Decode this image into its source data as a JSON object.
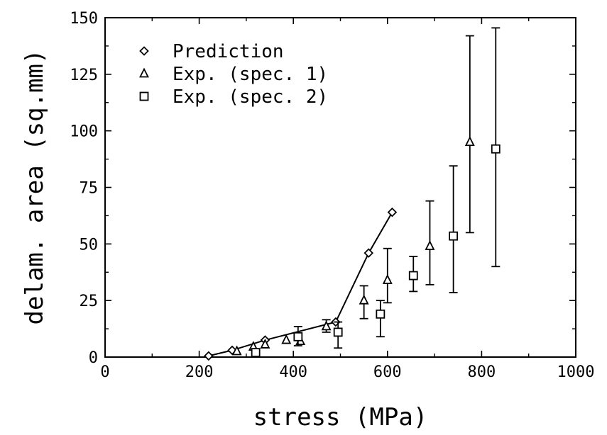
{
  "chart_data": {
    "type": "scatter",
    "xlabel": "stress (MPa)",
    "ylabel": "delam. area (sq.mm)",
    "xlim": [
      0,
      1000
    ],
    "ylim": [
      0,
      150
    ],
    "xticks": [
      0,
      200,
      400,
      600,
      800,
      1000
    ],
    "yticks": [
      0,
      25,
      50,
      75,
      100,
      125,
      150
    ],
    "grid": false,
    "legend_position": "top-left",
    "series": [
      {
        "name": "Prediction",
        "marker": "diamond",
        "line": true,
        "points": [
          {
            "x": 220,
            "y": 0.5
          },
          {
            "x": 270,
            "y": 3
          },
          {
            "x": 340,
            "y": 7.5
          },
          {
            "x": 490,
            "y": 15.5
          },
          {
            "x": 560,
            "y": 46
          },
          {
            "x": 610,
            "y": 64
          }
        ]
      },
      {
        "name": "Exp. (spec. 1)",
        "marker": "triangle",
        "line": false,
        "points": [
          {
            "x": 280,
            "y": 2.5
          },
          {
            "x": 315,
            "y": 4.5
          },
          {
            "x": 340,
            "y": 5.5
          },
          {
            "x": 385,
            "y": 7.5
          },
          {
            "x": 415,
            "y": 7
          },
          {
            "x": 470,
            "y": 13.5,
            "err_low": 11,
            "err_high": 16.5
          },
          {
            "x": 550,
            "y": 25,
            "err_low": 17,
            "err_high": 31.5
          },
          {
            "x": 600,
            "y": 34,
            "err_low": 24,
            "err_high": 48
          },
          {
            "x": 690,
            "y": 49,
            "err_low": 32,
            "err_high": 69
          },
          {
            "x": 775,
            "y": 95,
            "err_low": 55,
            "err_high": 142
          }
        ]
      },
      {
        "name": "Exp. (spec. 2)",
        "marker": "square",
        "line": false,
        "points": [
          {
            "x": 320,
            "y": 2
          },
          {
            "x": 410,
            "y": 9,
            "err_low": 5,
            "err_high": 13.5
          },
          {
            "x": 495,
            "y": 11,
            "err_low": 4,
            "err_high": 15.5
          },
          {
            "x": 585,
            "y": 19,
            "err_low": 9,
            "err_high": 25
          },
          {
            "x": 655,
            "y": 36,
            "err_low": 29,
            "err_high": 44.5
          },
          {
            "x": 740,
            "y": 53.5,
            "err_low": 28.5,
            "err_high": 84.5
          },
          {
            "x": 830,
            "y": 92,
            "err_low": 40,
            "err_high": 145.5
          }
        ]
      }
    ]
  }
}
